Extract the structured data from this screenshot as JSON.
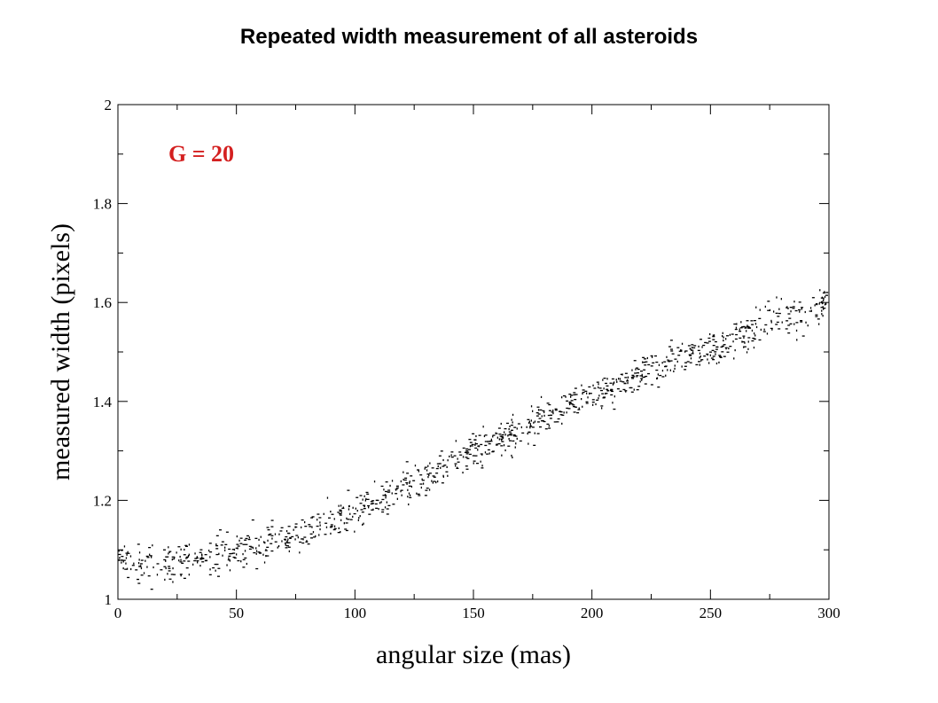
{
  "slide": {
    "title": "Repeated width measurement of all asteroids"
  },
  "chart_data": {
    "type": "scatter",
    "title": "Repeated width measurement of all asteroids",
    "xlabel": "angular size (mas)",
    "ylabel": "measured width (pixels)",
    "xlim": [
      0,
      300
    ],
    "ylim": [
      1,
      2
    ],
    "x_ticks": [
      0,
      50,
      100,
      150,
      200,
      250,
      300
    ],
    "y_ticks": [
      1,
      1.2,
      1.4,
      1.6,
      1.8,
      2
    ],
    "x_tick_labels": [
      "0",
      "50",
      "100",
      "150",
      "200",
      "250",
      "300"
    ],
    "y_tick_labels": [
      "1",
      "1.2",
      "1.4",
      "1.6",
      "1.8",
      "2"
    ],
    "grid": false,
    "annotation": {
      "text": "G = 20",
      "color": "#d42020"
    },
    "marker_color": "#000000",
    "series": [
      {
        "x": [
          0,
          5,
          10,
          15,
          20,
          25,
          30,
          35,
          40,
          45,
          50,
          55,
          60,
          65,
          70,
          75,
          80,
          85,
          90,
          95,
          100,
          105,
          110,
          115,
          120,
          125,
          130,
          135,
          140,
          145,
          150,
          155,
          160,
          165,
          170,
          175,
          180,
          185,
          190,
          195,
          200,
          205,
          210,
          215,
          220,
          225,
          230,
          235,
          240,
          245,
          250,
          255,
          260,
          265,
          270,
          275,
          280,
          285,
          290,
          295,
          300
        ],
        "y": [
          1.08,
          1.075,
          1.07,
          1.075,
          1.072,
          1.078,
          1.082,
          1.085,
          1.09,
          1.095,
          1.1,
          1.105,
          1.11,
          1.12,
          1.125,
          1.13,
          1.14,
          1.15,
          1.16,
          1.17,
          1.18,
          1.19,
          1.2,
          1.215,
          1.23,
          1.24,
          1.25,
          1.265,
          1.275,
          1.285,
          1.3,
          1.31,
          1.32,
          1.335,
          1.345,
          1.36,
          1.37,
          1.385,
          1.395,
          1.405,
          1.415,
          1.425,
          1.435,
          1.445,
          1.455,
          1.465,
          1.475,
          1.485,
          1.495,
          1.5,
          1.51,
          1.52,
          1.53,
          1.54,
          1.55,
          1.56,
          1.565,
          1.575,
          1.58,
          1.59,
          1.6
        ]
      }
    ]
  }
}
